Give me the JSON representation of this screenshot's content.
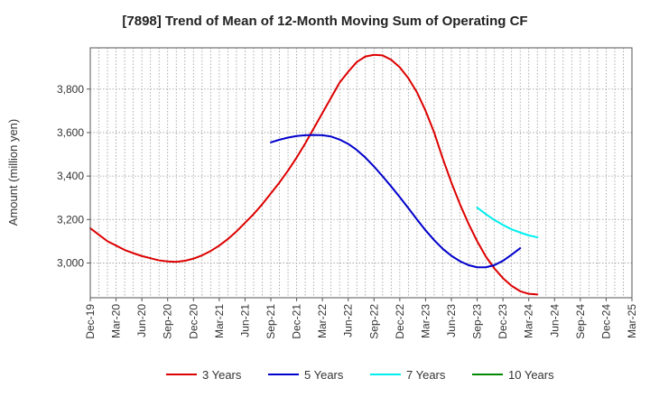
{
  "chart_data": {
    "type": "line",
    "title": "[7898]  Trend of Mean of 12-Month Moving Sum of Operating CF",
    "xlabel": "",
    "ylabel": "Amount (million yen)",
    "ylim": [
      2840,
      3990
    ],
    "yticks": [
      3000,
      3200,
      3400,
      3600,
      3800
    ],
    "ytick_labels": [
      "3,000",
      "3,200",
      "3,400",
      "3,600",
      "3,800"
    ],
    "x_start": "Dec-19",
    "x_end": "Mar-25",
    "num_months": 63,
    "xtick_labels": [
      "Dec-19",
      "Mar-20",
      "Jun-20",
      "Sep-20",
      "Dec-20",
      "Mar-21",
      "Jun-21",
      "Sep-21",
      "Dec-21",
      "Mar-22",
      "Jun-22",
      "Sep-22",
      "Dec-22",
      "Mar-23",
      "Jun-23",
      "Sep-23",
      "Dec-23",
      "Mar-24",
      "Jun-24",
      "Sep-24",
      "Dec-24",
      "Mar-25"
    ],
    "grid": true,
    "legend_position": "bottom",
    "series": [
      {
        "name": "3 Years",
        "color": "#dd0000",
        "start_index": 0,
        "values": [
          3160,
          3130,
          3100,
          3080,
          3060,
          3045,
          3032,
          3022,
          3012,
          3007,
          3005,
          3010,
          3020,
          3035,
          3055,
          3080,
          3110,
          3145,
          3185,
          3225,
          3270,
          3320,
          3370,
          3425,
          3485,
          3550,
          3620,
          3690,
          3760,
          3830,
          3880,
          3925,
          3950,
          3958,
          3955,
          3935,
          3900,
          3850,
          3785,
          3700,
          3600,
          3480,
          3370,
          3270,
          3180,
          3100,
          3030,
          2975,
          2930,
          2895,
          2870,
          2858,
          2855
        ]
      },
      {
        "name": "5 Years",
        "color": "#0000cc",
        "start_index": 21,
        "values": [
          3555,
          3567,
          3577,
          3584,
          3588,
          3589,
          3588,
          3582,
          3568,
          3548,
          3520,
          3485,
          3444,
          3399,
          3352,
          3303,
          3252,
          3200,
          3150,
          3105,
          3065,
          3033,
          3008,
          2990,
          2980,
          2980,
          2990,
          3010,
          3038,
          3068
        ]
      },
      {
        "name": "7 Years",
        "color": "#00eeee",
        "start_index": 45,
        "values": [
          3255,
          3225,
          3198,
          3175,
          3155,
          3140,
          3127,
          3118
        ]
      },
      {
        "name": "10 Years",
        "color": "#008800",
        "start_index": 45,
        "values": []
      }
    ]
  }
}
